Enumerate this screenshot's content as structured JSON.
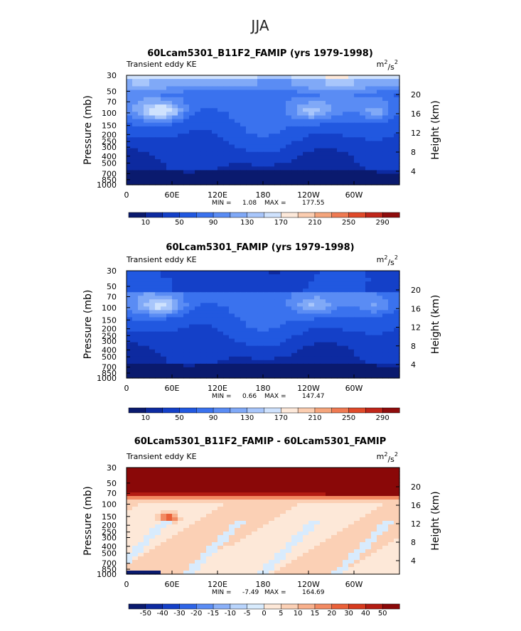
{
  "figure_title": "JJA",
  "chart_data": [
    {
      "type": "heatmap",
      "title": "60Lcam5301_B11F2_FAMIP (yrs 1979-1998)",
      "left_label": "Transient eddy KE",
      "units_base": "m",
      "units_exp1": "2",
      "units_mid": "/s",
      "units_exp2": "2",
      "ylabel": "Pressure (mb)",
      "y2label": "Height (km)",
      "x_ticks": [
        "0",
        "60E",
        "120E",
        "180",
        "120W",
        "60W"
      ],
      "y_ticks": [
        "30",
        "50",
        "70",
        "100",
        "150",
        "200",
        "250",
        "300",
        "400",
        "500",
        "700",
        "850",
        "1000"
      ],
      "y2_ticks": [
        "20",
        "16",
        "12",
        "8",
        "4"
      ],
      "min_label": "MIN =",
      "min_value": "1.08",
      "max_label": "MAX =",
      "max_value": "177.55",
      "colorbar_labels": [
        "10",
        "50",
        "90",
        "130",
        "170",
        "210",
        "250",
        "290"
      ]
    },
    {
      "type": "heatmap",
      "title": "60Lcam5301_FAMIP (yrs 1979-1998)",
      "left_label": "Transient eddy KE",
      "units_base": "m",
      "units_exp1": "2",
      "units_mid": "/s",
      "units_exp2": "2",
      "ylabel": "Pressure (mb)",
      "y2label": "Height (km)",
      "x_ticks": [
        "0",
        "60E",
        "120E",
        "180",
        "120W",
        "60W"
      ],
      "y_ticks": [
        "30",
        "50",
        "70",
        "100",
        "150",
        "200",
        "250",
        "300",
        "400",
        "500",
        "700",
        "850",
        "1000"
      ],
      "y2_ticks": [
        "20",
        "16",
        "12",
        "8",
        "4"
      ],
      "min_label": "MIN =",
      "min_value": "0.66",
      "max_label": "MAX =",
      "max_value": "147.47",
      "colorbar_labels": [
        "10",
        "50",
        "90",
        "130",
        "170",
        "210",
        "250",
        "290"
      ]
    },
    {
      "type": "heatmap",
      "title": "60Lcam5301_B11F2_FAMIP - 60Lcam5301_FAMIP",
      "left_label": "Transient eddy KE",
      "units_base": "m",
      "units_exp1": "2",
      "units_mid": "/s",
      "units_exp2": "2",
      "ylabel": "Pressure (mb)",
      "y2label": "Height (km)",
      "x_ticks": [
        "0",
        "60E",
        "120E",
        "180",
        "120W",
        "60W"
      ],
      "y_ticks": [
        "30",
        "50",
        "70",
        "100",
        "150",
        "200",
        "250",
        "300",
        "400",
        "500",
        "700",
        "850",
        "1000"
      ],
      "y2_ticks": [
        "20",
        "16",
        "12",
        "8",
        "4"
      ],
      "min_label": "MIN =",
      "min_value": "-7.49",
      "max_label": "MAX =",
      "max_value": "164.69",
      "colorbar_labels": [
        "-50",
        "-40",
        "-30",
        "-20",
        "-15",
        "-10",
        "-5",
        "0",
        "5",
        "10",
        "15",
        "20",
        "30",
        "40",
        "50"
      ]
    }
  ],
  "palettes": {
    "seq": [
      "#0a1a6e",
      "#0d2aa0",
      "#1440c8",
      "#2158e0",
      "#3a72ee",
      "#5a8cf4",
      "#80a9f7",
      "#a8c6fb",
      "#cfe2fd",
      "#fde9da",
      "#fbcdb0",
      "#f5a57c",
      "#ef7a52",
      "#e04a2a",
      "#c0261a",
      "#8f0c0c"
    ],
    "diff": [
      "#0a1a6e",
      "#0d2aa0",
      "#1440c8",
      "#2e64e6",
      "#5a8cf4",
      "#8ab0f8",
      "#b8d4fc",
      "#d8ebfd",
      "#fde8d8",
      "#fbd0b5",
      "#f8b08c",
      "#f28a62",
      "#ea6038",
      "#d63a1e",
      "#b31c12",
      "#8a0808"
    ]
  }
}
